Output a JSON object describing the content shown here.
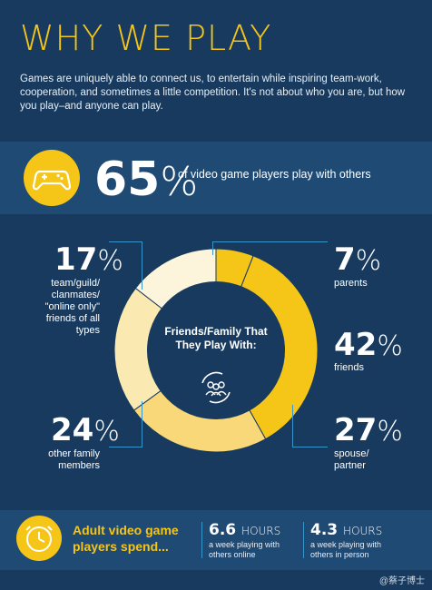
{
  "title": "WHY WE PLAY",
  "intro": "Games are uniquely able to connect us, to entertain while inspiring team-work, cooperation, and sometimes a little competition. It's not about who you are, but how you play–and anyone can play.",
  "headline": {
    "number": "65",
    "percent_sign": "%",
    "text": "of video game players play with others",
    "icon": "gamepad-icon"
  },
  "chart_data": {
    "type": "pie",
    "center_label": "Friends/Family That They Play With:",
    "center_icon": "group-icon",
    "slices": [
      {
        "label": "parents",
        "value": 7,
        "color": "#f5c518"
      },
      {
        "label": "friends",
        "value": 42,
        "color": "#f5c518"
      },
      {
        "label": "spouse/ partner",
        "value": 27,
        "color": "#f8d878"
      },
      {
        "label": "other family members",
        "value": 24,
        "color": "#fbe9b2"
      },
      {
        "label": "team/guild/ clanmates/ \"online only\" friends of all types",
        "value": 17,
        "color": "#fdf4dc"
      }
    ]
  },
  "stats": {
    "parents": {
      "number": "7",
      "pct": "%",
      "label": "parents"
    },
    "friends": {
      "number": "42",
      "pct": "%",
      "label": "friends"
    },
    "spouse": {
      "number": "27",
      "pct": "%",
      "label": "spouse/ partner"
    },
    "other_family": {
      "number": "24",
      "pct": "%",
      "label": "other family members"
    },
    "team": {
      "number": "17",
      "pct": "%",
      "label": "team/guild/ clanmates/ \"online only\" friends of all types"
    }
  },
  "footer": {
    "text": "Adult video game players spend...",
    "icon": "clock-icon",
    "online": {
      "number": "6.6",
      "unit": "HOURS",
      "desc": "a week playing with others online"
    },
    "in_person": {
      "number": "4.3",
      "unit": "HOURS",
      "desc": "a week playing with others in person"
    }
  },
  "watermark": "@蔡子博士",
  "colors": {
    "background": "#173a5e",
    "band": "#1f4a74",
    "accent": "#f5c518",
    "bracket": "#3a93c9"
  }
}
